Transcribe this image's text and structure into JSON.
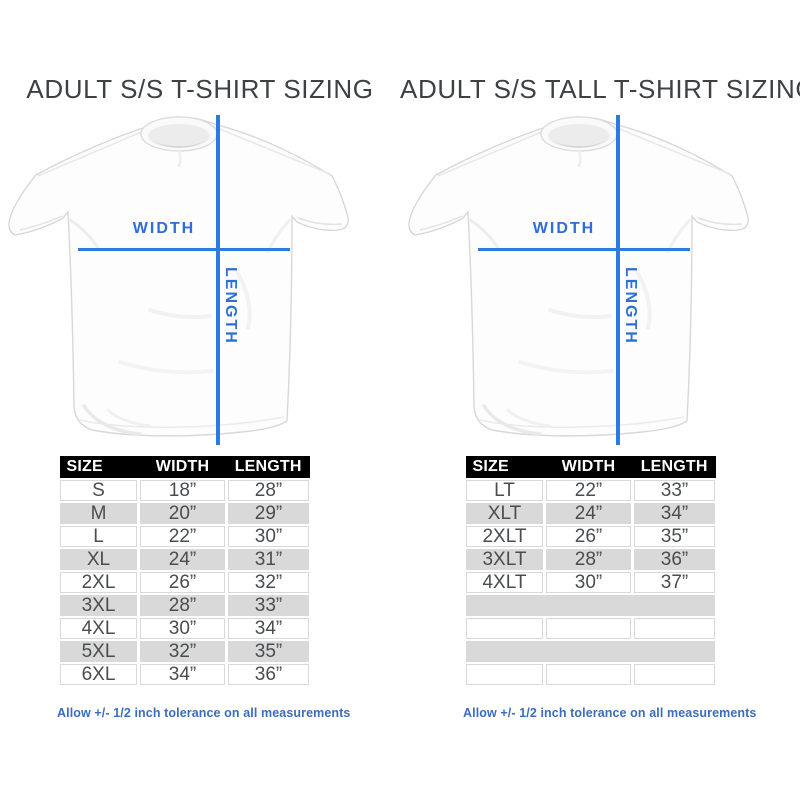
{
  "colors": {
    "accent_blue": "#2b7ce2",
    "label_blue": "#2e6fd6",
    "note_blue": "#3a6ebd",
    "header_bg": "#000000",
    "header_text": "#ffffff",
    "row_gray": "#d9d9d9",
    "title_text": "#3d4144",
    "cell_text": "#4a4d4f"
  },
  "panels": [
    {
      "id": "regular",
      "title": "ADULT S/S T-SHIRT SIZING",
      "diagram": {
        "width_label": "WIDTH",
        "length_label": "LENGTH"
      },
      "table": {
        "headers": [
          "SIZE",
          "WIDTH",
          "LENGTH"
        ],
        "rows": [
          [
            "S",
            "18”",
            "28”"
          ],
          [
            "M",
            "20”",
            "29”"
          ],
          [
            "L",
            "22”",
            "30”"
          ],
          [
            "XL",
            "24”",
            "31”"
          ],
          [
            "2XL",
            "26”",
            "32”"
          ],
          [
            "3XL",
            "28”",
            "33”"
          ],
          [
            "4XL",
            "30”",
            "34”"
          ],
          [
            "5XL",
            "32”",
            "35”"
          ],
          [
            "6XL",
            "34”",
            "36”"
          ]
        ],
        "empty_rows": 0
      },
      "note": "Allow +/- 1/2 inch tolerance on all measurements"
    },
    {
      "id": "tall",
      "title": "ADULT S/S TALL T-SHIRT SIZING",
      "diagram": {
        "width_label": "WIDTH",
        "length_label": "LENGTH"
      },
      "table": {
        "headers": [
          "SIZE",
          "WIDTH",
          "LENGTH"
        ],
        "rows": [
          [
            "LT",
            "22”",
            "33”"
          ],
          [
            "XLT",
            "24”",
            "34”"
          ],
          [
            "2XLT",
            "26”",
            "35”"
          ],
          [
            "3XLT",
            "28”",
            "36”"
          ],
          [
            "4XLT",
            "30”",
            "37”"
          ]
        ],
        "empty_rows": 4
      },
      "note": "Allow +/- 1/2 inch tolerance on all measurements"
    }
  ]
}
